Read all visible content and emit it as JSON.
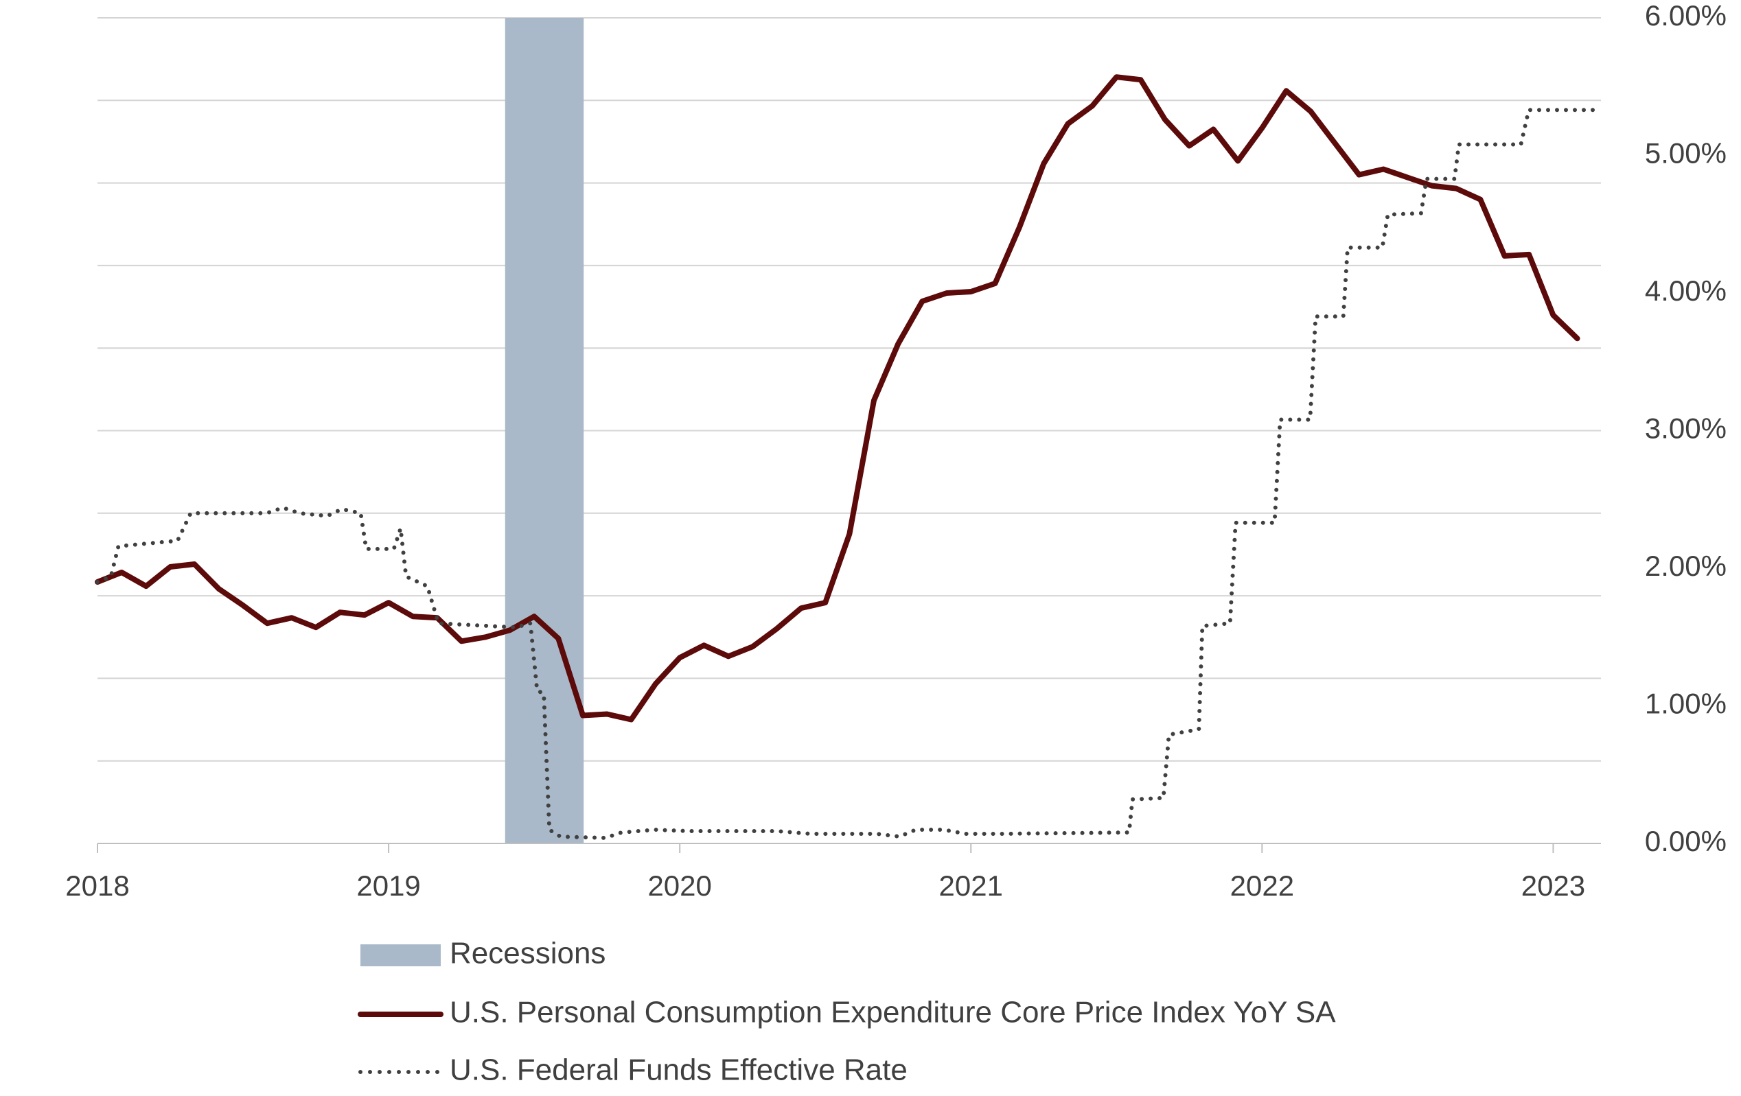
{
  "chart_data": {
    "type": "line",
    "xlim": [
      2018,
      2023.164
    ],
    "xticks": [
      2018,
      2019,
      2020,
      2021,
      2022,
      2023
    ],
    "ylim": [
      0,
      6
    ],
    "yticks": [
      {
        "value": 0,
        "label": "0.00%"
      },
      {
        "value": 1,
        "label": "1.00%"
      },
      {
        "value": 2,
        "label": "2.00%"
      },
      {
        "value": 3,
        "label": "3.00%"
      },
      {
        "value": 4,
        "label": "4.00%"
      },
      {
        "value": 5,
        "label": "5.00%"
      },
      {
        "value": 6,
        "label": "6.00%"
      }
    ],
    "grid_ticks": [
      0,
      0.6,
      1.2,
      1.8,
      2.4,
      3,
      3.6,
      4.2,
      4.8,
      5.4,
      6
    ],
    "grid": true,
    "legend": "bottom",
    "bands": [
      {
        "name": "Recessions",
        "color": "#a9b9c9",
        "start": 2019.4,
        "end": 2019.67
      }
    ],
    "series": [
      {
        "name": "U.S. Personal Consumption Expenditure Core Price Index YoY SA",
        "color": "#5c0a0a",
        "style": "solid",
        "x": [
          2018,
          2018.083,
          2018.167,
          2018.25,
          2018.333,
          2018.417,
          2018.5,
          2018.583,
          2018.667,
          2018.75,
          2018.833,
          2018.917,
          2019,
          2019.083,
          2019.167,
          2019.25,
          2019.333,
          2019.417,
          2019.5,
          2019.583,
          2019.667,
          2019.75,
          2019.833,
          2019.917,
          2020,
          2020.083,
          2020.167,
          2020.25,
          2020.333,
          2020.417,
          2020.5,
          2020.583,
          2020.667,
          2020.75,
          2020.833,
          2020.917,
          2021,
          2021.083,
          2021.167,
          2021.25,
          2021.333,
          2021.417,
          2021.5,
          2021.583,
          2021.667,
          2021.75,
          2021.833,
          2021.917,
          2022,
          2022.083,
          2022.167,
          2022.25,
          2022.333,
          2022.417,
          2022.5,
          2022.583,
          2022.667,
          2022.75,
          2022.833,
          2022.917,
          2023,
          2023.083
        ],
        "values": [
          1.9,
          1.97,
          1.87,
          2.01,
          2.03,
          1.85,
          1.73,
          1.6,
          1.64,
          1.57,
          1.68,
          1.66,
          1.75,
          1.65,
          1.64,
          1.47,
          1.5,
          1.55,
          1.65,
          1.49,
          0.93,
          0.94,
          0.9,
          1.16,
          1.35,
          1.44,
          1.36,
          1.43,
          1.56,
          1.71,
          1.75,
          2.25,
          3.22,
          3.63,
          3.94,
          4.0,
          4.01,
          4.07,
          4.48,
          4.94,
          5.23,
          5.36,
          5.57,
          5.55,
          5.26,
          5.07,
          5.19,
          4.96,
          5.2,
          5.47,
          5.32,
          5.09,
          4.86,
          4.9,
          4.84,
          4.78,
          4.76,
          4.68,
          4.27,
          4.28,
          3.84,
          3.67
        ]
      },
      {
        "name": "U.S. Federal Funds Effective Rate",
        "color": "#404040",
        "style": "dotted",
        "x": [
          2018,
          2018.046,
          2018.072,
          2018.275,
          2018.32,
          2018.58,
          2018.637,
          2018.694,
          2018.789,
          2018.839,
          2018.904,
          2018.923,
          2019.018,
          2019.041,
          2019.06,
          2019.133,
          2019.171,
          2019.438,
          2019.487,
          2019.51,
          2019.533,
          2019.552,
          2019.59,
          2019.743,
          2019.8,
          2019.915,
          2020.029,
          2020.334,
          2020.449,
          2020.677,
          2020.754,
          2020.811,
          2020.906,
          2020.982,
          2021.097,
          2021.543,
          2021.555,
          2021.661,
          2021.68,
          2021.783,
          2021.795,
          2021.89,
          2021.909,
          2022.043,
          2022.062,
          2022.165,
          2022.184,
          2022.279,
          2022.294,
          2022.413,
          2022.432,
          2022.546,
          2022.565,
          2022.661,
          2022.676,
          2022.889,
          2022.916,
          2023.164
        ],
        "values": [
          1.9,
          1.94,
          2.16,
          2.2,
          2.4,
          2.4,
          2.44,
          2.4,
          2.38,
          2.43,
          2.4,
          2.14,
          2.14,
          2.29,
          1.94,
          1.87,
          1.6,
          1.57,
          1.6,
          1.11,
          1.09,
          0.1,
          0.05,
          0.04,
          0.08,
          0.1,
          0.09,
          0.09,
          0.07,
          0.07,
          0.05,
          0.1,
          0.1,
          0.07,
          0.07,
          0.08,
          0.32,
          0.33,
          0.79,
          0.83,
          1.58,
          1.6,
          2.33,
          2.33,
          3.08,
          3.08,
          3.83,
          3.83,
          4.33,
          4.33,
          4.57,
          4.58,
          4.83,
          4.83,
          5.08,
          5.08,
          5.33,
          5.33
        ]
      }
    ]
  }
}
